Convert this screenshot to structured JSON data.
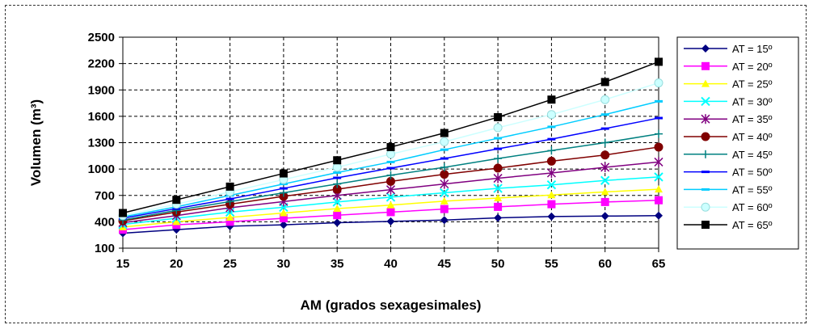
{
  "chart_data": {
    "type": "line",
    "xlabel": "AM (grados sexagesimales)",
    "ylabel": "Volumen (m³)",
    "x": [
      15,
      20,
      25,
      30,
      35,
      40,
      45,
      50,
      55,
      60,
      65
    ],
    "xlim": [
      15,
      65
    ],
    "ylim": [
      100,
      2500
    ],
    "yticks": [
      100,
      400,
      700,
      1000,
      1300,
      1600,
      1900,
      2200,
      2500
    ],
    "xticks": [
      15,
      20,
      25,
      30,
      35,
      40,
      45,
      50,
      55,
      60,
      65
    ],
    "grid": true,
    "legend_position": "right",
    "series": [
      {
        "name": "AT = 15º",
        "color": "#000080",
        "marker": "diamond",
        "values": [
          270,
          310,
          350,
          365,
          390,
          405,
          420,
          445,
          460,
          465,
          470
        ]
      },
      {
        "name": "AT = 20º",
        "color": "#ff00ff",
        "marker": "square",
        "values": [
          310,
          365,
          400,
          440,
          475,
          510,
          545,
          570,
          600,
          625,
          645
        ]
      },
      {
        "name": "AT = 25º",
        "color": "#ffff00",
        "marker": "triangle",
        "values": [
          340,
          400,
          450,
          500,
          550,
          590,
          635,
          670,
          705,
          740,
          770
        ]
      },
      {
        "name": "AT = 30º",
        "color": "#00ffff",
        "marker": "x",
        "values": [
          370,
          440,
          510,
          565,
          625,
          680,
          730,
          780,
          820,
          870,
          910
        ]
      },
      {
        "name": "AT = 35º",
        "color": "#800080",
        "marker": "star",
        "values": [
          390,
          470,
          560,
          630,
          700,
          765,
          830,
          895,
          955,
          1020,
          1080
        ]
      },
      {
        "name": "AT = 40º",
        "color": "#800000",
        "marker": "circle",
        "values": [
          410,
          510,
          600,
          690,
          770,
          860,
          940,
          1010,
          1090,
          1160,
          1250
        ]
      },
      {
        "name": "AT = 45º",
        "color": "#008080",
        "marker": "plus",
        "values": [
          420,
          530,
          630,
          730,
          830,
          930,
          1020,
          1120,
          1210,
          1300,
          1400
        ]
      },
      {
        "name": "AT = 50º",
        "color": "#0000ff",
        "marker": "dash",
        "values": [
          440,
          550,
          660,
          780,
          900,
          1010,
          1120,
          1230,
          1340,
          1460,
          1580
        ]
      },
      {
        "name": "AT = 55º",
        "color": "#00ccff",
        "marker": "dash",
        "values": [
          455,
          570,
          700,
          830,
          960,
          1080,
          1220,
          1350,
          1480,
          1620,
          1770
        ]
      },
      {
        "name": "AT = 60º",
        "color": "#ccffff",
        "marker": "circle",
        "values": [
          470,
          600,
          740,
          880,
          1020,
          1170,
          1310,
          1470,
          1620,
          1790,
          1980
        ]
      },
      {
        "name": "AT = 65º",
        "color": "#000000",
        "marker": "square",
        "values": [
          500,
          650,
          800,
          950,
          1100,
          1250,
          1410,
          1590,
          1790,
          1990,
          2220
        ]
      }
    ]
  }
}
